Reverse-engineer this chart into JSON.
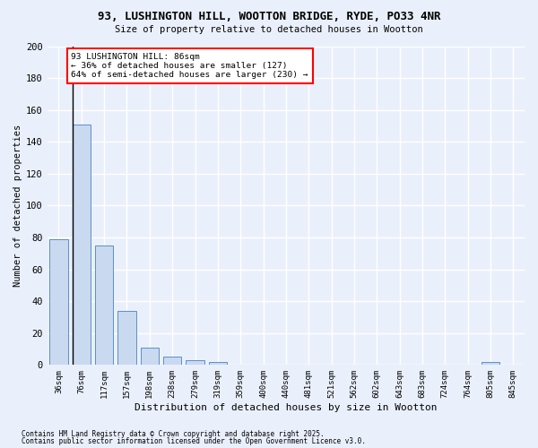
{
  "title1": "93, LUSHINGTON HILL, WOOTTON BRIDGE, RYDE, PO33 4NR",
  "title2": "Size of property relative to detached houses in Wootton",
  "xlabel": "Distribution of detached houses by size in Wootton",
  "ylabel": "Number of detached properties",
  "categories": [
    "36sqm",
    "76sqm",
    "117sqm",
    "157sqm",
    "198sqm",
    "238sqm",
    "279sqm",
    "319sqm",
    "359sqm",
    "400sqm",
    "440sqm",
    "481sqm",
    "521sqm",
    "562sqm",
    "602sqm",
    "643sqm",
    "683sqm",
    "724sqm",
    "764sqm",
    "805sqm",
    "845sqm"
  ],
  "values": [
    79,
    151,
    75,
    34,
    11,
    5,
    3,
    2,
    0,
    0,
    0,
    0,
    0,
    0,
    0,
    0,
    0,
    0,
    0,
    2,
    0
  ],
  "bar_color": "#c9d9f0",
  "bar_edge_color": "#5b8fcc",
  "vline_x_index": 1,
  "annotation_text": "93 LUSHINGTON HILL: 86sqm\n← 36% of detached houses are smaller (127)\n64% of semi-detached houses are larger (230) →",
  "annotation_box_color": "white",
  "annotation_box_edge_color": "red",
  "vline_color": "black",
  "footer1": "Contains HM Land Registry data © Crown copyright and database right 2025.",
  "footer2": "Contains public sector information licensed under the Open Government Licence v3.0.",
  "bg_color": "#eaf0fb",
  "grid_color": "#ffffff",
  "ylim": [
    0,
    200
  ],
  "yticks": [
    0,
    20,
    40,
    60,
    80,
    100,
    120,
    140,
    160,
    180,
    200
  ]
}
